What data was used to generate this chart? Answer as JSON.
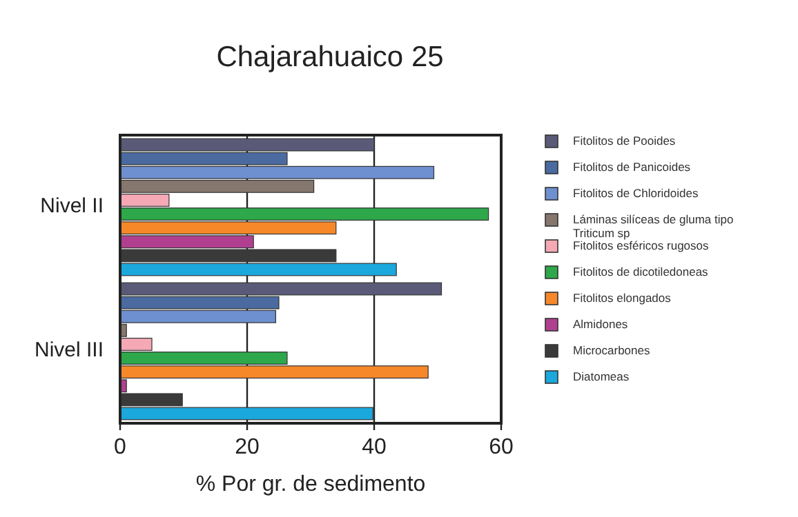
{
  "chart_data": {
    "type": "bar",
    "orientation": "horizontal",
    "title": "Chajarahuaico 25",
    "xlabel": "% Por gr. de sedimento",
    "categories": [
      "Nivel II",
      "Nivel III"
    ],
    "series": [
      {
        "name": "Fitolitos de Pooides",
        "color": "#5a5a78",
        "values": [
          40,
          50.6
        ]
      },
      {
        "name": "Fitolitos de Panicoides",
        "color": "#4a6aa0",
        "values": [
          26.3,
          25
        ]
      },
      {
        "name": "Fitolitos de Chloridoides",
        "color": "#6e8fd0",
        "values": [
          49.4,
          24.5
        ]
      },
      {
        "name": "Láminas silíceas de gluma tipo Triticum sp",
        "color": "#85766e",
        "values": [
          30.5,
          1
        ]
      },
      {
        "name": "Fitolitos esféricos rugosos",
        "color": "#f4a9b4",
        "values": [
          7.7,
          5
        ]
      },
      {
        "name": "Fitolitos de dicotiledoneas",
        "color": "#2ea84a",
        "values": [
          58,
          26.3
        ]
      },
      {
        "name": "Fitolitos elongados",
        "color": "#f7882a",
        "values": [
          34,
          48.5
        ]
      },
      {
        "name": "Almidones",
        "color": "#b0408f",
        "values": [
          21,
          1
        ]
      },
      {
        "name": "Microcarbones",
        "color": "#3a3a3a",
        "values": [
          34,
          9.8
        ]
      },
      {
        "name": "Diatomeas",
        "color": "#1ba8dc",
        "values": [
          43.5,
          39.8
        ]
      }
    ],
    "xlim": [
      0,
      60
    ],
    "xticks": [
      0,
      20,
      40,
      60
    ],
    "grid": "x",
    "legend": "right"
  }
}
